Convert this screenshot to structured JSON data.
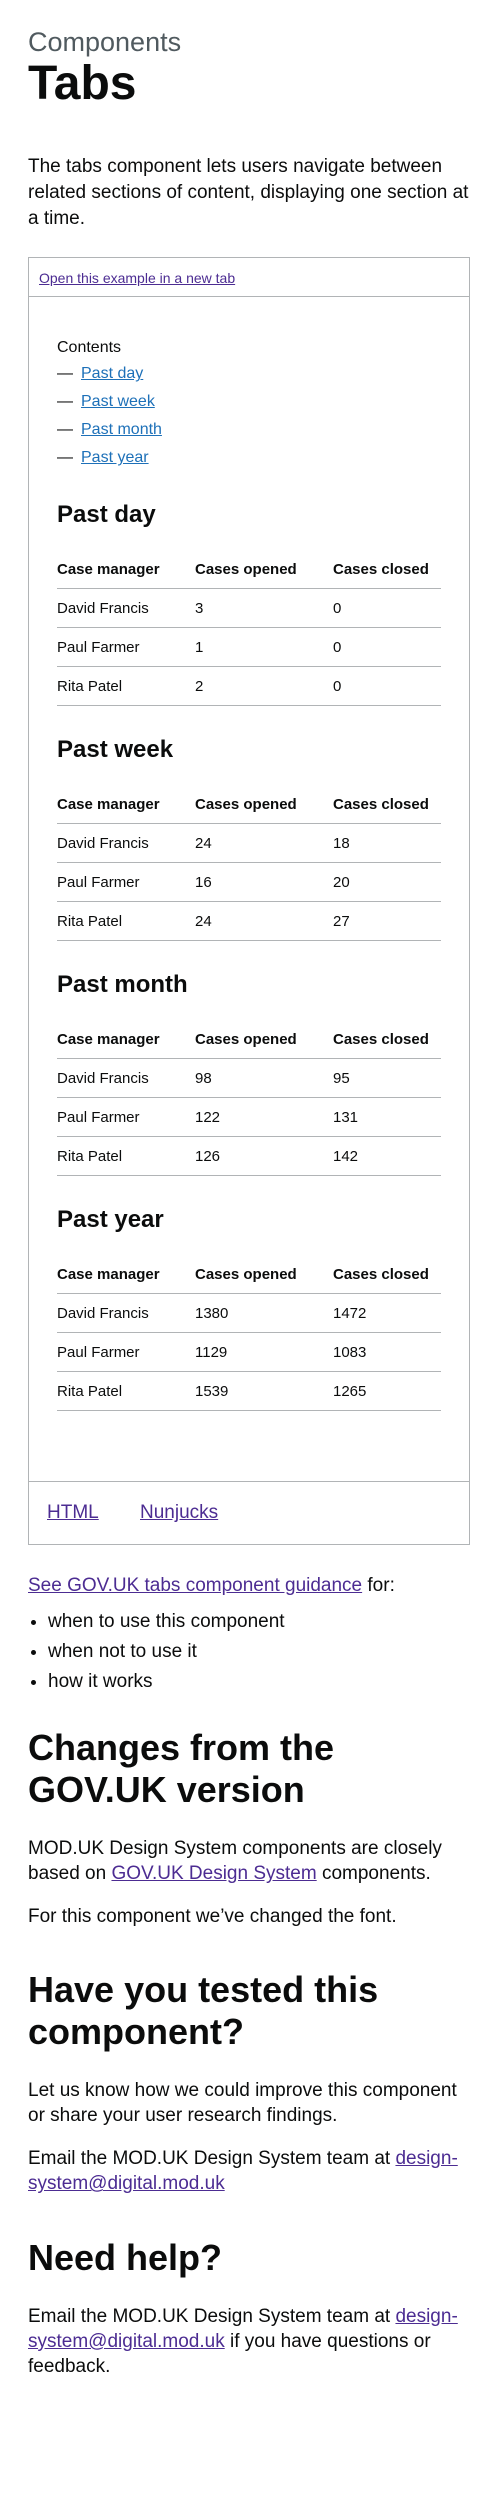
{
  "header": {
    "caption": "Components",
    "title": "Tabs"
  },
  "lead": "The tabs component lets users navigate between related sections of content, displaying one section at a time.",
  "example": {
    "open_link": "Open this example in a new tab",
    "contents_label": "Contents",
    "contents_dash": "—",
    "contents": [
      "Past day",
      "Past week",
      "Past month",
      "Past year"
    ],
    "columns": [
      "Case manager",
      "Cases opened",
      "Cases closed"
    ],
    "panels": [
      {
        "heading": "Past day",
        "rows": [
          [
            "David Francis",
            "3",
            "0"
          ],
          [
            "Paul Farmer",
            "1",
            "0"
          ],
          [
            "Rita Patel",
            "2",
            "0"
          ]
        ]
      },
      {
        "heading": "Past week",
        "rows": [
          [
            "David Francis",
            "24",
            "18"
          ],
          [
            "Paul Farmer",
            "16",
            "20"
          ],
          [
            "Rita Patel",
            "24",
            "27"
          ]
        ]
      },
      {
        "heading": "Past month",
        "rows": [
          [
            "David Francis",
            "98",
            "95"
          ],
          [
            "Paul Farmer",
            "122",
            "131"
          ],
          [
            "Rita Patel",
            "126",
            "142"
          ]
        ]
      },
      {
        "heading": "Past year",
        "rows": [
          [
            "David Francis",
            "1380",
            "1472"
          ],
          [
            "Paul Farmer",
            "1129",
            "1083"
          ],
          [
            "Rita Patel",
            "1539",
            "1265"
          ]
        ]
      }
    ],
    "code_tabs": [
      "HTML",
      "Nunjucks"
    ]
  },
  "guidance": {
    "link": "See GOV.UK tabs component guidance",
    "suffix": " for:",
    "items": [
      "when to use this component",
      "when not to use it",
      "how it works"
    ]
  },
  "changes": {
    "heading": "Changes from the GOV.UK version",
    "p1_before": "MOD.UK Design System components are closely based on ",
    "p1_link": "GOV.UK Design System",
    "p1_after": " components.",
    "p2": "For this component we’ve changed the font."
  },
  "tested": {
    "heading": "Have you tested this component?",
    "p1": "Let us know how we could improve this component or share your user research findings.",
    "p2_before": "Email the MOD.UK Design System team at ",
    "p2_link": "design-system@digital.mod.uk"
  },
  "help": {
    "heading": "Need help?",
    "p_before": "Email the MOD.UK Design System team at ",
    "p_link": "design-system@digital.mod.uk",
    "p_after": " if you have questions or feedback."
  }
}
